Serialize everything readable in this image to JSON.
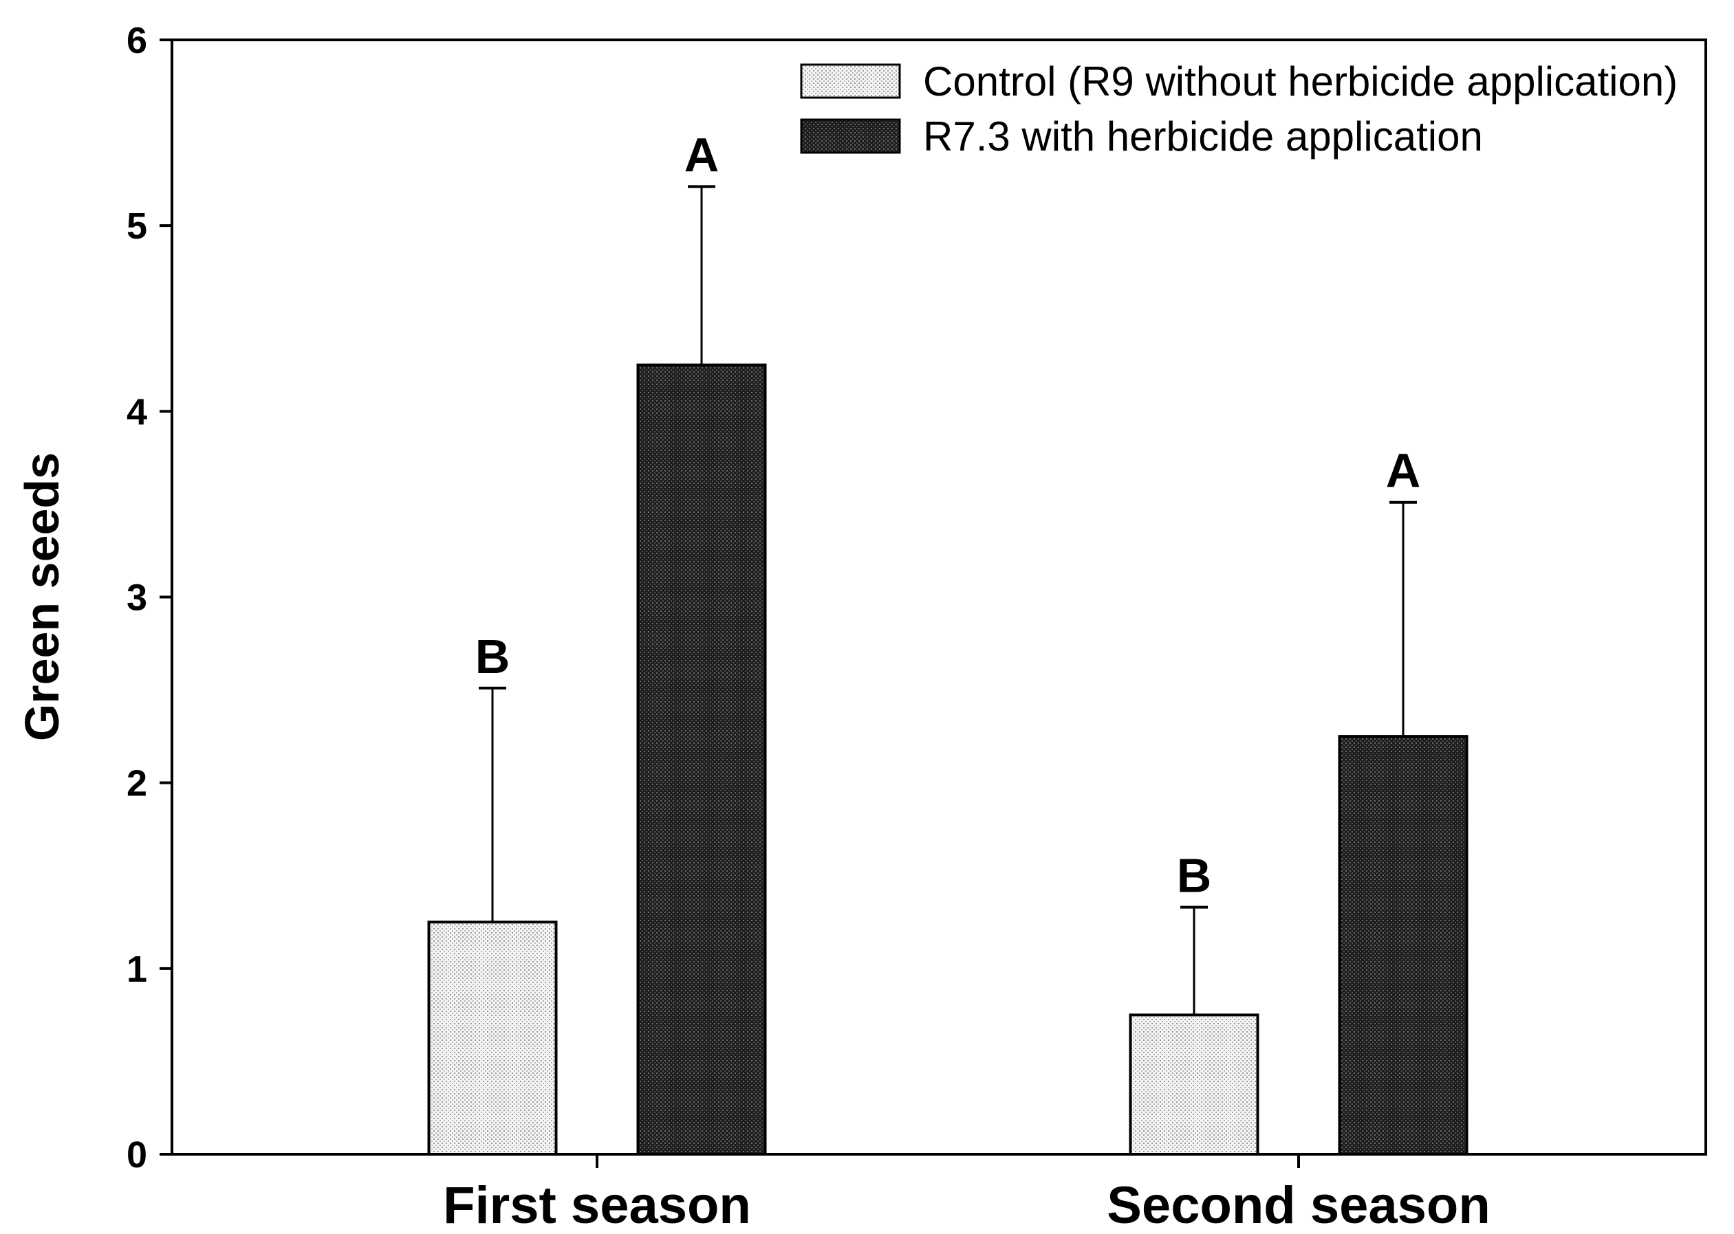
{
  "chart_data": {
    "type": "bar",
    "title": "",
    "xlabel": "",
    "ylabel": "Green seeds",
    "ylim": [
      0,
      6
    ],
    "yticks": [
      "0",
      "1",
      "2",
      "3",
      "4",
      "5",
      "6"
    ],
    "categories": [
      "First season",
      "Second season"
    ],
    "legend_position": "top-right",
    "series": [
      {
        "name": "Control (R9 without herbicide application)",
        "values": [
          1.25,
          0.75
        ],
        "errors": [
          1.26,
          0.58
        ],
        "significance": [
          "B",
          "B"
        ],
        "fill": "#f0f0f0",
        "pattern": "light-dots"
      },
      {
        "name": "R7.3 with herbicide application",
        "values": [
          4.25,
          2.25
        ],
        "errors": [
          0.96,
          1.26
        ],
        "significance": [
          "A",
          "A"
        ],
        "fill": "#222222",
        "pattern": "dark-dots"
      }
    ]
  }
}
